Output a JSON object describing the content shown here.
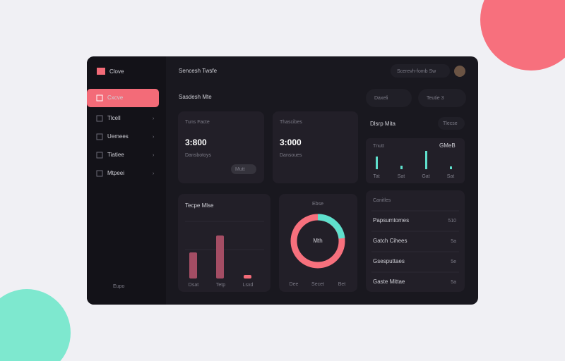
{
  "sidebar": {
    "logo": "Clove",
    "nav": [
      "Cxcve",
      "Tlcell",
      "Uemees",
      "Tiatiee",
      "Mtpeei"
    ],
    "footer": "Eupo"
  },
  "header": {
    "title": "Sencesh Twsfe",
    "search": "Scerevh-fomb Sw"
  },
  "section": {
    "title": "Sasdesh Mte",
    "buttons": [
      "Daxeli",
      "Teutie 3"
    ]
  },
  "cards": [
    {
      "label": "Tuns Facte",
      "value": "3:800",
      "sub": "Dansbotoys",
      "pill": "Mutt"
    },
    {
      "label": "Thascibes",
      "value": "3:000",
      "sub": "Dansoues"
    }
  ],
  "side_panel": {
    "title": "Dlsrp Mita",
    "button": "Tlecse",
    "card_left": "Tnutt",
    "card_right": "GMeB",
    "bar_labels": [
      "Tat",
      "Sat",
      "Gat",
      "Sat"
    ]
  },
  "bar_card": {
    "title": "Tecpe Mlse",
    "labels": [
      "Dsat",
      "Tetp",
      "Lsxd"
    ]
  },
  "donut_card": {
    "title": "Ebse",
    "center": "Mth",
    "labels": [
      "Dee",
      "Secet",
      "Bet"
    ]
  },
  "list_card": {
    "title": "Canitles",
    "rows": [
      [
        "Papsumtomes",
        "510"
      ],
      [
        "Gatch Cihees",
        "5a"
      ],
      [
        "Gsesputtaes",
        "5e"
      ],
      [
        "Gaste Mittae",
        "5a"
      ]
    ]
  }
}
